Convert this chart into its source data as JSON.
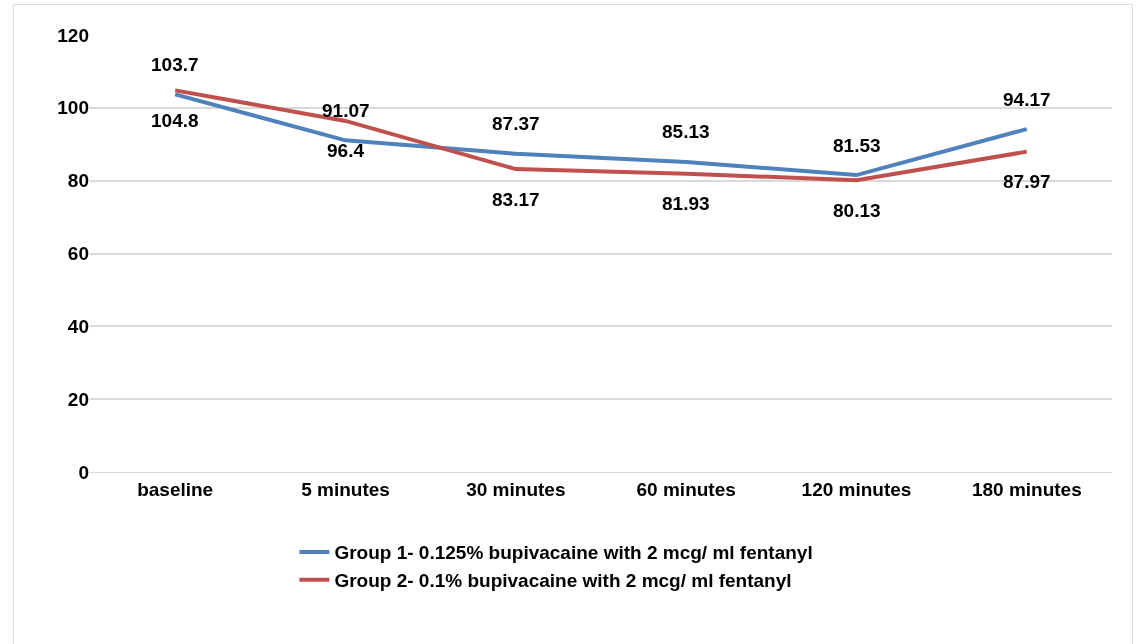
{
  "chart_data": {
    "type": "line",
    "categories": [
      "baseline",
      "5 minutes",
      "30 minutes",
      "60 minutes",
      "120 minutes",
      "180 minutes"
    ],
    "series": [
      {
        "name": "Group 1- 0.125% bupivacaine with 2 mcg/ ml fentanyl",
        "color": "#4f81bd",
        "values": [
          103.7,
          91.07,
          87.37,
          85.13,
          81.53,
          94.17
        ]
      },
      {
        "name": "Group 2- 0.1% bupivacaine with 2 mcg/ ml fentanyl",
        "color": "#c0504d",
        "values": [
          104.8,
          96.4,
          83.17,
          81.93,
          80.13,
          87.97
        ]
      }
    ],
    "ylim": [
      0,
      120
    ],
    "yticks": [
      0,
      20,
      40,
      60,
      80,
      100,
      120
    ],
    "grid": "y",
    "legend": "bottom",
    "data_labels": true,
    "marker": "none",
    "line_style": "solid"
  }
}
